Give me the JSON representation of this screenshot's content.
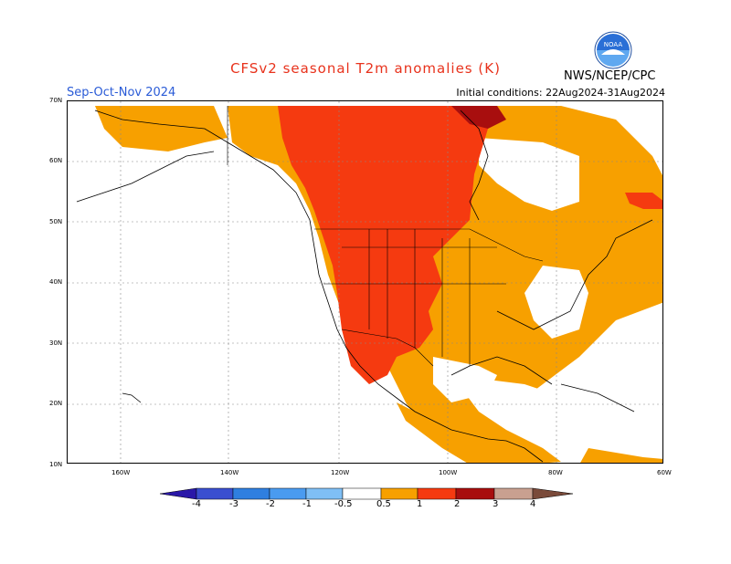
{
  "header": {
    "title": "CFSv2 seasonal T2m anomalies (K)",
    "season": "Sep-Oct-Nov 2024",
    "initial_conditions": "Initial conditions: 22Aug2024-31Aug2024",
    "agency": "NWS/NCEP/CPC",
    "logo_text": "NOAA"
  },
  "axes": {
    "lat_labels": [
      "70N",
      "60N",
      "50N",
      "40N",
      "30N",
      "20N",
      "10N"
    ],
    "lon_labels": [
      "160W",
      "140W",
      "120W",
      "100W",
      "80W",
      "60W"
    ]
  },
  "colorbar": {
    "ticks": [
      "-4",
      "-3",
      "-2",
      "-1",
      "-0.5",
      "0.5",
      "1",
      "2",
      "3",
      "4"
    ],
    "colors": [
      "#2a18a8",
      "#3a4fd0",
      "#2f7fe0",
      "#4a9bf0",
      "#7fbff5",
      "#ffffff",
      "#f7a000",
      "#f53a10",
      "#a80e0e",
      "#c9a090",
      "#7a4a3a"
    ]
  },
  "icons": {
    "logo": "noaa-logo-icon"
  }
}
